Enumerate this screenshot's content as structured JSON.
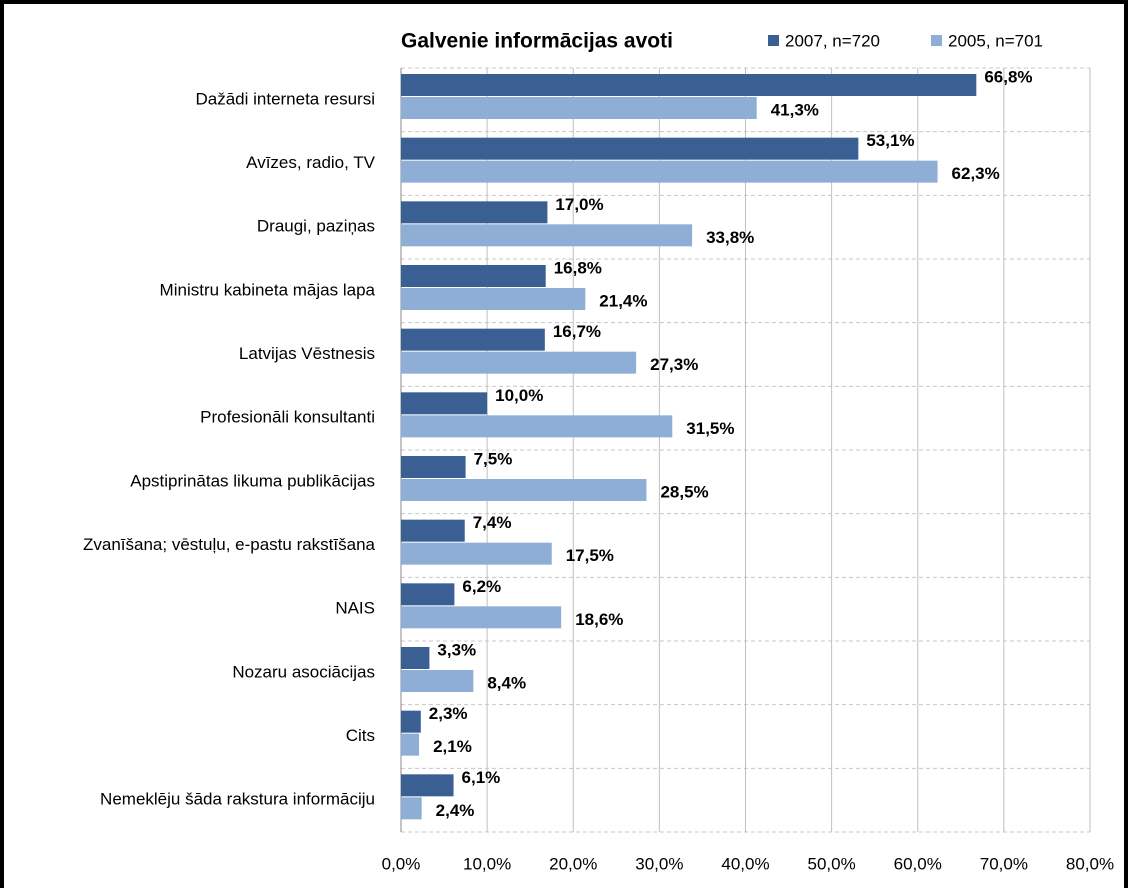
{
  "chart_data": {
    "type": "hbar",
    "title": "Galvenie informācijas avoti",
    "categories": [
      "Dažādi interneta resursi",
      "Avīzes, radio, TV",
      "Draugi, paziņas",
      "Ministru kabineta  mājas lapa",
      "Latvijas Vēstnesis",
      "Profesionāli konsultanti",
      "Apstiprinātas likuma  publikācijas",
      "Zvanīšana; vēstuļu,  e-pastu rakstīšana",
      "NAIS",
      "Nozaru asociācijas",
      "Cits",
      "Nemeklēju šāda rakstura informāciju"
    ],
    "series": [
      {
        "name": "2007, n=720",
        "color": "#3a5f93",
        "values": [
          66.8,
          53.1,
          17.0,
          16.8,
          16.7,
          10.0,
          7.5,
          7.4,
          6.2,
          3.3,
          2.3,
          6.1
        ],
        "value_labels": [
          "66,8%",
          "53,1%",
          "17,0%",
          "16,8%",
          "16,7%",
          "10,0%",
          "7,5%",
          "7,4%",
          "6,2%",
          "3,3%",
          "2,3%",
          "6,1%"
        ]
      },
      {
        "name": "2005, n=701",
        "color": "#8eaed6",
        "values": [
          41.3,
          62.3,
          33.8,
          21.4,
          27.3,
          31.5,
          28.5,
          17.5,
          18.6,
          8.4,
          2.1,
          2.4
        ],
        "value_labels": [
          "41,3%",
          "62,3%",
          "33,8%",
          "21,4%",
          "27,3%",
          "31,5%",
          "28,5%",
          "17,5%",
          "18,6%",
          "8,4%",
          "2,1%",
          "2,4%"
        ]
      }
    ],
    "xlim": [
      0,
      80
    ],
    "xticks": [
      {
        "value": 0,
        "label": "0,0%"
      },
      {
        "value": 10,
        "label": "10,0%"
      },
      {
        "value": 20,
        "label": "20,0%"
      },
      {
        "value": 30,
        "label": "30,0%"
      },
      {
        "value": 40,
        "label": "40,0%"
      },
      {
        "value": 50,
        "label": "50,0%"
      },
      {
        "value": 60,
        "label": "60,0%"
      },
      {
        "value": 70,
        "label": "70,0%"
      },
      {
        "value": 80,
        "label": "80,0%"
      }
    ],
    "grid": true,
    "legend": "top-right"
  }
}
